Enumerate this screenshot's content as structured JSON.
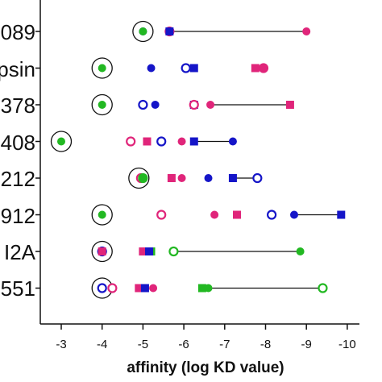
{
  "chart_data": {
    "type": "scatter",
    "title": "",
    "xlabel": "affinity (log KD value)",
    "xlim": [
      -2.5,
      -10.2
    ],
    "x_ticks": [
      -3,
      -4,
      -5,
      -6,
      -7,
      -8,
      -9,
      -10
    ],
    "x_tick_labels": [
      "-3",
      "-4",
      "-5",
      "-6",
      "-7",
      "-8",
      "-9",
      "-10"
    ],
    "categories": [
      "089",
      "psin",
      "378",
      "408",
      "212",
      "912",
      "I2A",
      "551"
    ],
    "colors": {
      "blue": "#1515c8",
      "pink": "#e0257a",
      "green": "#22b822",
      "black": "#111111"
    },
    "rows": [
      {
        "label": "089",
        "circled": -5.0,
        "points": [
          {
            "x": -5.0,
            "color": "blue",
            "shape": "filled-circle"
          },
          {
            "x": -5.0,
            "color": "green",
            "shape": "filled-circle"
          },
          {
            "x": -5.65,
            "color": "pink",
            "shape": "open-circle"
          },
          {
            "x": -5.65,
            "color": "blue",
            "shape": "filled-square"
          },
          {
            "x": -9.0,
            "color": "pink",
            "shape": "filled-circle"
          }
        ],
        "range": [
          -5.65,
          -9.0
        ]
      },
      {
        "label": "psin",
        "circled": -4.0,
        "points": [
          {
            "x": -4.0,
            "color": "green",
            "shape": "filled-circle"
          },
          {
            "x": -5.2,
            "color": "blue",
            "shape": "filled-circle"
          },
          {
            "x": -6.05,
            "color": "blue",
            "shape": "open-circle"
          },
          {
            "x": -6.25,
            "color": "blue",
            "shape": "filled-square"
          },
          {
            "x": -7.75,
            "color": "pink",
            "shape": "filled-square"
          },
          {
            "x": -7.95,
            "color": "pink",
            "shape": "open-circle"
          },
          {
            "x": -7.95,
            "color": "pink",
            "shape": "filled-circle"
          }
        ],
        "range": null
      },
      {
        "label": "378",
        "circled": -4.0,
        "points": [
          {
            "x": -4.0,
            "color": "green",
            "shape": "filled-circle"
          },
          {
            "x": -5.0,
            "color": "blue",
            "shape": "open-circle"
          },
          {
            "x": -5.3,
            "color": "blue",
            "shape": "filled-circle"
          },
          {
            "x": -6.25,
            "color": "blue",
            "shape": "filled-square"
          },
          {
            "x": -6.25,
            "color": "pink",
            "shape": "open-circle"
          },
          {
            "x": -6.65,
            "color": "pink",
            "shape": "filled-circle"
          },
          {
            "x": -8.6,
            "color": "pink",
            "shape": "filled-square"
          }
        ],
        "range": [
          -6.65,
          -8.6
        ]
      },
      {
        "label": "408",
        "circled": -3.0,
        "points": [
          {
            "x": -3.0,
            "color": "green",
            "shape": "filled-circle"
          },
          {
            "x": -4.7,
            "color": "pink",
            "shape": "open-circle"
          },
          {
            "x": -5.1,
            "color": "pink",
            "shape": "filled-square"
          },
          {
            "x": -5.45,
            "color": "blue",
            "shape": "open-circle"
          },
          {
            "x": -5.95,
            "color": "pink",
            "shape": "filled-circle"
          },
          {
            "x": -6.25,
            "color": "blue",
            "shape": "filled-square"
          },
          {
            "x": -7.2,
            "color": "blue",
            "shape": "filled-circle"
          }
        ],
        "range": [
          -6.25,
          -7.2
        ]
      },
      {
        "label": "212",
        "circled": -4.9,
        "points": [
          {
            "x": -4.95,
            "color": "pink",
            "shape": "open-circle"
          },
          {
            "x": -5.0,
            "color": "green",
            "shape": "open-circle"
          },
          {
            "x": -5.0,
            "color": "green",
            "shape": "filled-circle"
          },
          {
            "x": -5.7,
            "color": "pink",
            "shape": "filled-square"
          },
          {
            "x": -5.95,
            "color": "pink",
            "shape": "filled-circle"
          },
          {
            "x": -6.6,
            "color": "blue",
            "shape": "filled-circle"
          },
          {
            "x": -7.2,
            "color": "blue",
            "shape": "filled-square"
          },
          {
            "x": -7.8,
            "color": "blue",
            "shape": "open-circle"
          }
        ],
        "range": [
          -7.2,
          -7.8
        ]
      },
      {
        "label": "912",
        "circled": -4.0,
        "points": [
          {
            "x": -4.0,
            "color": "green",
            "shape": "filled-circle"
          },
          {
            "x": -5.45,
            "color": "pink",
            "shape": "open-circle"
          },
          {
            "x": -6.75,
            "color": "pink",
            "shape": "filled-circle"
          },
          {
            "x": -7.3,
            "color": "pink",
            "shape": "filled-square"
          },
          {
            "x": -8.15,
            "color": "blue",
            "shape": "open-circle"
          },
          {
            "x": -8.7,
            "color": "blue",
            "shape": "filled-circle"
          },
          {
            "x": -9.85,
            "color": "blue",
            "shape": "filled-square"
          }
        ],
        "range": [
          -8.7,
          -9.85
        ]
      },
      {
        "label": "I2A",
        "circled": -4.0,
        "points": [
          {
            "x": -4.0,
            "color": "pink",
            "shape": "filled-circle"
          },
          {
            "x": -4.0,
            "color": "blue",
            "shape": "open-circle"
          },
          {
            "x": -4.0,
            "color": "pink",
            "shape": "filled-square"
          },
          {
            "x": -5.0,
            "color": "pink",
            "shape": "filled-square"
          },
          {
            "x": -5.0,
            "color": "pink",
            "shape": "filled-circle"
          },
          {
            "x": -5.2,
            "color": "green",
            "shape": "filled-square"
          },
          {
            "x": -5.15,
            "color": "blue",
            "shape": "filled-square"
          },
          {
            "x": -5.75,
            "color": "green",
            "shape": "open-circle"
          },
          {
            "x": -8.85,
            "color": "green",
            "shape": "filled-circle"
          }
        ],
        "range": [
          -5.75,
          -8.85
        ]
      },
      {
        "label": "551",
        "circled": -4.0,
        "points": [
          {
            "x": -4.0,
            "color": "blue",
            "shape": "open-circle"
          },
          {
            "x": -4.25,
            "color": "pink",
            "shape": "open-circle"
          },
          {
            "x": -4.9,
            "color": "pink",
            "shape": "filled-square"
          },
          {
            "x": -5.05,
            "color": "blue",
            "shape": "filled-square"
          },
          {
            "x": -5.05,
            "color": "blue",
            "shape": "filled-circle"
          },
          {
            "x": -5.25,
            "color": "pink",
            "shape": "filled-circle"
          },
          {
            "x": -6.45,
            "color": "green",
            "shape": "filled-square"
          },
          {
            "x": -6.6,
            "color": "green",
            "shape": "filled-circle"
          },
          {
            "x": -9.4,
            "color": "green",
            "shape": "open-circle"
          }
        ],
        "range": [
          -6.6,
          -9.4
        ]
      }
    ]
  }
}
